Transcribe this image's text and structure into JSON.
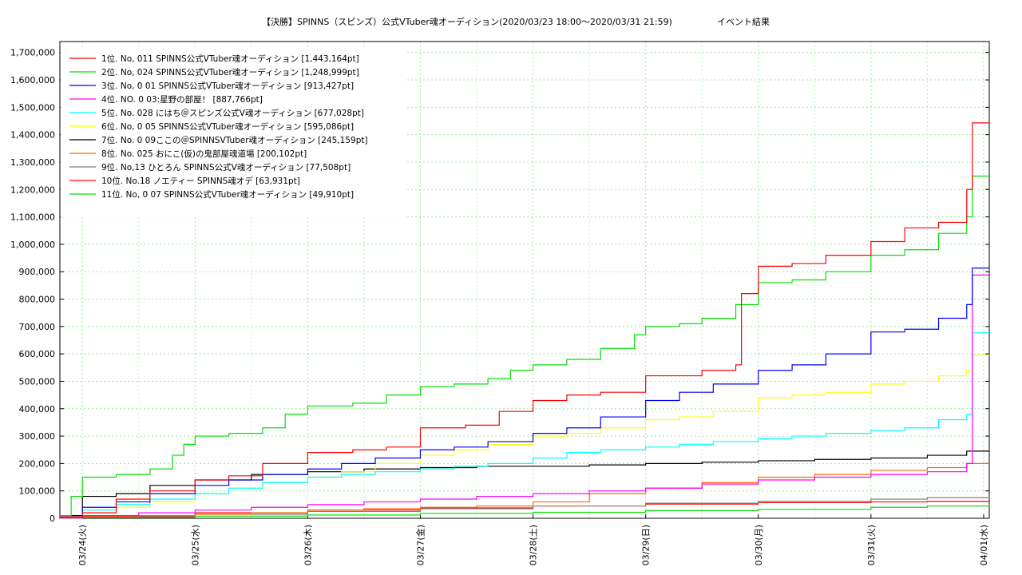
{
  "chart_data": {
    "type": "line",
    "title": "【決勝】SPINNS（スピンズ）公式VTuber魂オーディション(2020/03/23 18:00〜2020/03/31 21:59)",
    "subtitle": "イベント結果",
    "ylim": [
      0,
      1740000
    ],
    "yticks": [
      0,
      100000,
      200000,
      300000,
      400000,
      500000,
      600000,
      700000,
      800000,
      900000,
      1000000,
      1100000,
      1200000,
      1300000,
      1400000,
      1500000,
      1600000,
      1700000
    ],
    "ytick_labels": [
      "0",
      "100,000",
      "200,000",
      "300,000",
      "400,000",
      "500,000",
      "600,000",
      "700,000",
      "800,000",
      "900,000",
      "1,000,000",
      "1,100,000",
      "1,200,000",
      "1,300,000",
      "1,400,000",
      "1,500,000",
      "1,600,000",
      "1,700,000"
    ],
    "xlim": [
      -0.2,
      8.05
    ],
    "xticks": [
      0,
      1,
      2,
      3,
      4,
      5,
      6,
      7,
      8
    ],
    "xtick_labels": [
      "03/24(火)",
      "03/25(水)",
      "03/26(木)",
      "03/27(金)",
      "03/28(土)",
      "03/29(日)",
      "03/30(月)",
      "03/31(火)",
      "04/01(水)"
    ],
    "grid": true,
    "legend_position": "top-left",
    "series": [
      {
        "name": "1位. No, 011 SPINNS公式VTuber魂オーディション [1,443,164pt]",
        "color": "#ff0000",
        "x": [
          -0.2,
          0,
          0.3,
          0.6,
          1,
          1.3,
          1.6,
          2,
          2.4,
          2.7,
          3,
          3.4,
          3.7,
          4,
          4.3,
          4.6,
          5,
          5.2,
          5.5,
          5.8,
          5.85,
          6,
          6.3,
          6.6,
          7,
          7.3,
          7.6,
          7.85,
          7.9,
          8.05
        ],
        "y": [
          5000,
          20000,
          70000,
          100000,
          140000,
          155000,
          200000,
          240000,
          250000,
          260000,
          330000,
          340000,
          390000,
          430000,
          450000,
          460000,
          520000,
          520000,
          540000,
          560000,
          820000,
          920000,
          930000,
          960000,
          1010000,
          1060000,
          1080000,
          1200000,
          1443164,
          1443164
        ]
      },
      {
        "name": "2位. No, 024 SPINNS公式VTuber魂オーディション [1,248,999pt]",
        "color": "#00e000",
        "x": [
          -0.2,
          -0.1,
          0,
          0.3,
          0.6,
          0.8,
          0.9,
          1,
          1.3,
          1.6,
          1.8,
          2,
          2.4,
          2.7,
          3,
          3.3,
          3.6,
          3.8,
          4,
          4.3,
          4.6,
          4.9,
          5,
          5.3,
          5.5,
          5.8,
          6,
          6.3,
          6.6,
          7,
          7.3,
          7.6,
          7.85,
          7.9,
          8.05
        ],
        "y": [
          10000,
          80000,
          150000,
          160000,
          180000,
          230000,
          270000,
          300000,
          310000,
          330000,
          380000,
          410000,
          420000,
          450000,
          480000,
          490000,
          510000,
          540000,
          560000,
          580000,
          620000,
          670000,
          700000,
          710000,
          730000,
          780000,
          860000,
          870000,
          900000,
          960000,
          980000,
          1040000,
          1100000,
          1248999,
          1248999
        ]
      },
      {
        "name": "3位. No, 0 01 SPINNS公式VTuber魂オーディション [913,427pt]",
        "color": "#0000ff",
        "x": [
          -0.2,
          0,
          0.3,
          0.6,
          1,
          1.3,
          1.6,
          2,
          2.3,
          2.6,
          3,
          3.3,
          3.6,
          4,
          4.3,
          4.6,
          5,
          5.3,
          5.6,
          6,
          6.3,
          6.6,
          7,
          7.3,
          7.6,
          7.85,
          7.9,
          8.05
        ],
        "y": [
          5000,
          40000,
          60000,
          90000,
          120000,
          140000,
          160000,
          180000,
          200000,
          220000,
          250000,
          260000,
          280000,
          310000,
          330000,
          370000,
          430000,
          460000,
          490000,
          540000,
          560000,
          600000,
          680000,
          690000,
          730000,
          780000,
          913427,
          913427
        ]
      },
      {
        "name": "4位. NO. 0 03:星野の部屋！ [887,766pt]",
        "color": "#ff00ff",
        "x": [
          -0.2,
          0,
          0.5,
          1,
          1.5,
          2,
          2.5,
          3,
          3.5,
          4,
          4.5,
          5,
          5.5,
          6,
          6.5,
          7,
          7.5,
          7.85,
          7.9,
          8.05
        ],
        "y": [
          2000,
          10000,
          20000,
          30000,
          40000,
          50000,
          60000,
          70000,
          80000,
          90000,
          100000,
          110000,
          125000,
          140000,
          150000,
          160000,
          170000,
          200000,
          887766,
          887766
        ]
      },
      {
        "name": "5位. No. 028 にはち＠スピンズ公式V魂オーディション [677,028pt]",
        "color": "#00ffff",
        "x": [
          -0.2,
          0,
          0.3,
          0.6,
          1,
          1.3,
          1.6,
          2,
          2.3,
          2.6,
          3,
          3.3,
          3.6,
          4,
          4.3,
          4.6,
          5,
          5.3,
          5.6,
          6,
          6.3,
          6.6,
          7,
          7.3,
          7.6,
          7.85,
          7.9,
          8.05
        ],
        "y": [
          5000,
          30000,
          50000,
          70000,
          90000,
          110000,
          130000,
          150000,
          160000,
          170000,
          180000,
          190000,
          200000,
          220000,
          240000,
          250000,
          260000,
          270000,
          280000,
          290000,
          300000,
          310000,
          320000,
          330000,
          360000,
          380000,
          677028,
          677028
        ]
      },
      {
        "name": "6位. No, 0 05 SPINNS公式VTuber魂オーディション [595,086pt]",
        "color": "#ffff00",
        "x": [
          -0.2,
          0,
          0.3,
          0.6,
          1,
          1.3,
          1.6,
          2,
          2.3,
          2.6,
          3,
          3.3,
          3.6,
          4,
          4.3,
          4.6,
          5,
          5.3,
          5.6,
          6,
          6.3,
          6.6,
          7,
          7.3,
          7.6,
          7.85,
          7.9,
          8.05
        ],
        "y": [
          5000,
          20000,
          40000,
          60000,
          90000,
          110000,
          130000,
          150000,
          170000,
          200000,
          230000,
          250000,
          270000,
          300000,
          310000,
          330000,
          360000,
          370000,
          390000,
          440000,
          450000,
          460000,
          490000,
          500000,
          520000,
          540000,
          595086,
          595086
        ]
      },
      {
        "name": "7位. No. 0 09ここの＠SPINNSVTuber魂オーディション [245,159pt]",
        "color": "#000000",
        "x": [
          -0.2,
          0,
          0.3,
          0.6,
          1,
          1.5,
          2,
          2.5,
          3,
          3.5,
          4,
          4.5,
          5,
          5.5,
          6,
          6.5,
          7,
          7.5,
          7.85,
          8.05
        ],
        "y": [
          10000,
          80000,
          90000,
          120000,
          140000,
          160000,
          170000,
          180000,
          185000,
          190000,
          190000,
          195000,
          200000,
          205000,
          210000,
          215000,
          220000,
          230000,
          245159,
          245159
        ]
      },
      {
        "name": "8位. No. 025 おにこ(仮)の鬼部屋魂道場  [200,102pt]",
        "color": "#ff6600",
        "x": [
          -0.2,
          0,
          0.5,
          1,
          1.5,
          2,
          2.5,
          3,
          3.5,
          4,
          4.5,
          5,
          5.5,
          6,
          6.5,
          7,
          7.5,
          7.85,
          8.05
        ],
        "y": [
          1000,
          5000,
          10000,
          15000,
          20000,
          30000,
          35000,
          40000,
          45000,
          60000,
          90000,
          110000,
          130000,
          150000,
          160000,
          175000,
          185000,
          200102,
          200102
        ]
      },
      {
        "name": "9位. No,13 ひとろん SPINNS公式V魂オーディション [77,508pt]",
        "color": "#808080",
        "x": [
          -0.2,
          0,
          1,
          2,
          3,
          4,
          5,
          6,
          7,
          7.5,
          8.05
        ],
        "y": [
          1000,
          5000,
          15000,
          25000,
          35000,
          45000,
          55000,
          62000,
          70000,
          75000,
          77508
        ]
      },
      {
        "name": "10位. No.18 ノエティー SPINNS魂オデ [63,931pt]",
        "color": "#ff0000",
        "x": [
          -0.2,
          0,
          1,
          2,
          3,
          4,
          5,
          6,
          7,
          7.5,
          8.05
        ],
        "y": [
          1000,
          8000,
          20000,
          30000,
          38000,
          45000,
          52000,
          57000,
          60000,
          62000,
          63931
        ]
      },
      {
        "name": "11位. No, 0 07 SPINNS公式VTuber魂オーディション [49,910pt]",
        "color": "#00e000",
        "x": [
          -0.2,
          0,
          1,
          2,
          3,
          4,
          5,
          6,
          7,
          7.5,
          8.05
        ],
        "y": [
          1000,
          3000,
          8000,
          12000,
          18000,
          22000,
          28000,
          33000,
          40000,
          45000,
          49910
        ]
      }
    ]
  }
}
